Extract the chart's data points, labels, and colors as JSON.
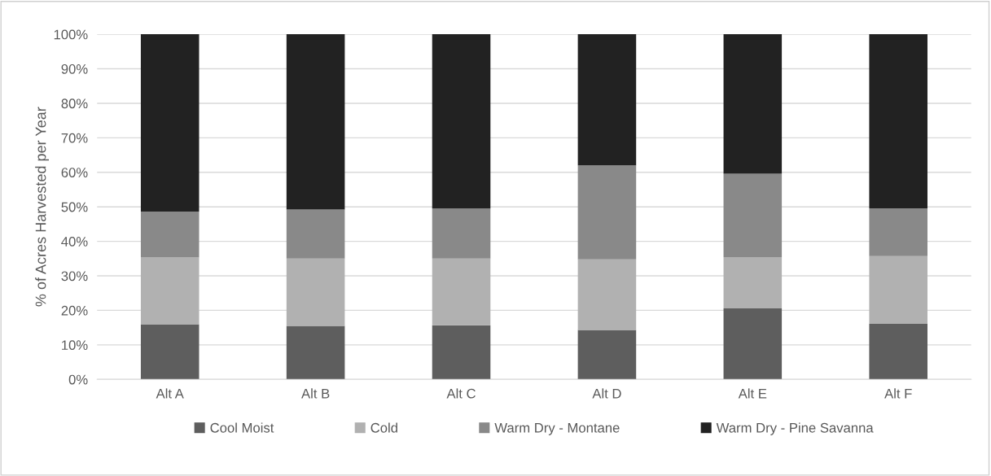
{
  "chart_data": {
    "type": "bar",
    "stacked": true,
    "ylabel": "% of Acres Harvested per Year",
    "categories": [
      "Alt A",
      "Alt B",
      "Alt C",
      "Alt D",
      "Alt E",
      "Alt F"
    ],
    "series": [
      {
        "name": "Cool Moist",
        "color": "#5e5e5e",
        "values": [
          16.0,
          15.5,
          15.7,
          14.3,
          20.6,
          16.1
        ]
      },
      {
        "name": "Cold",
        "color": "#b1b1b1",
        "values": [
          19.3,
          19.5,
          19.3,
          20.5,
          14.8,
          19.6
        ]
      },
      {
        "name": "Warm Dry - Montane",
        "color": "#898989",
        "values": [
          13.3,
          14.2,
          14.5,
          27.2,
          24.2,
          13.9
        ]
      },
      {
        "name": "Warm Dry - Pine Savanna",
        "color": "#222222",
        "values": [
          51.4,
          50.8,
          50.5,
          38.0,
          40.4,
          50.4
        ]
      }
    ],
    "ylim": [
      0,
      100
    ],
    "yticks": [
      {
        "value": 0,
        "label": "0%"
      },
      {
        "value": 10,
        "label": "10%"
      },
      {
        "value": 20,
        "label": "20%"
      },
      {
        "value": 30,
        "label": "30%"
      },
      {
        "value": 40,
        "label": "40%"
      },
      {
        "value": 50,
        "label": "50%"
      },
      {
        "value": 60,
        "label": "60%"
      },
      {
        "value": 70,
        "label": "70%"
      },
      {
        "value": 80,
        "label": "80%"
      },
      {
        "value": 90,
        "label": "90%"
      },
      {
        "value": 100,
        "label": "100%"
      }
    ],
    "grid": "y",
    "legend": "bottom"
  }
}
